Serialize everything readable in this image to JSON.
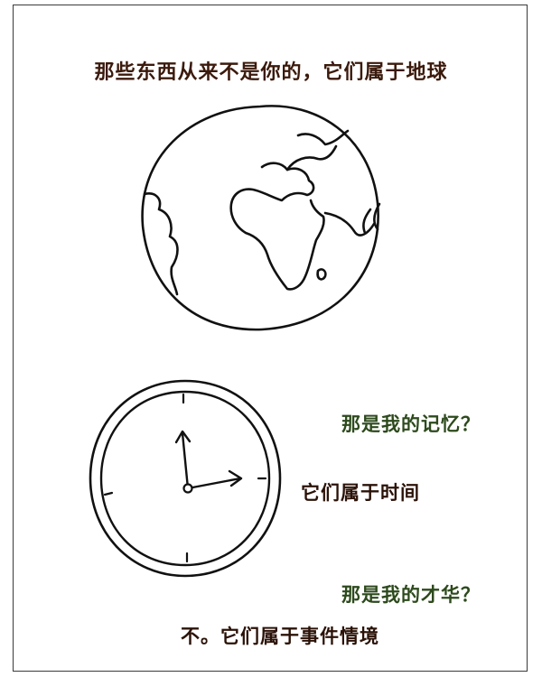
{
  "captions": {
    "top": "那些东西从来不是你的，它们属于地球",
    "memory_question": "那是我的记忆？",
    "time_answer": "它们属于时间",
    "talent_question": "那是我的才华？",
    "event_answer": "不。它们属于事件情境"
  },
  "illustrations": {
    "globe": "globe-drawing",
    "clock": "clock-drawing"
  },
  "colors": {
    "line": "#111111",
    "brown_text": "#3b1a0c",
    "green_text": "#2d4a1c"
  }
}
